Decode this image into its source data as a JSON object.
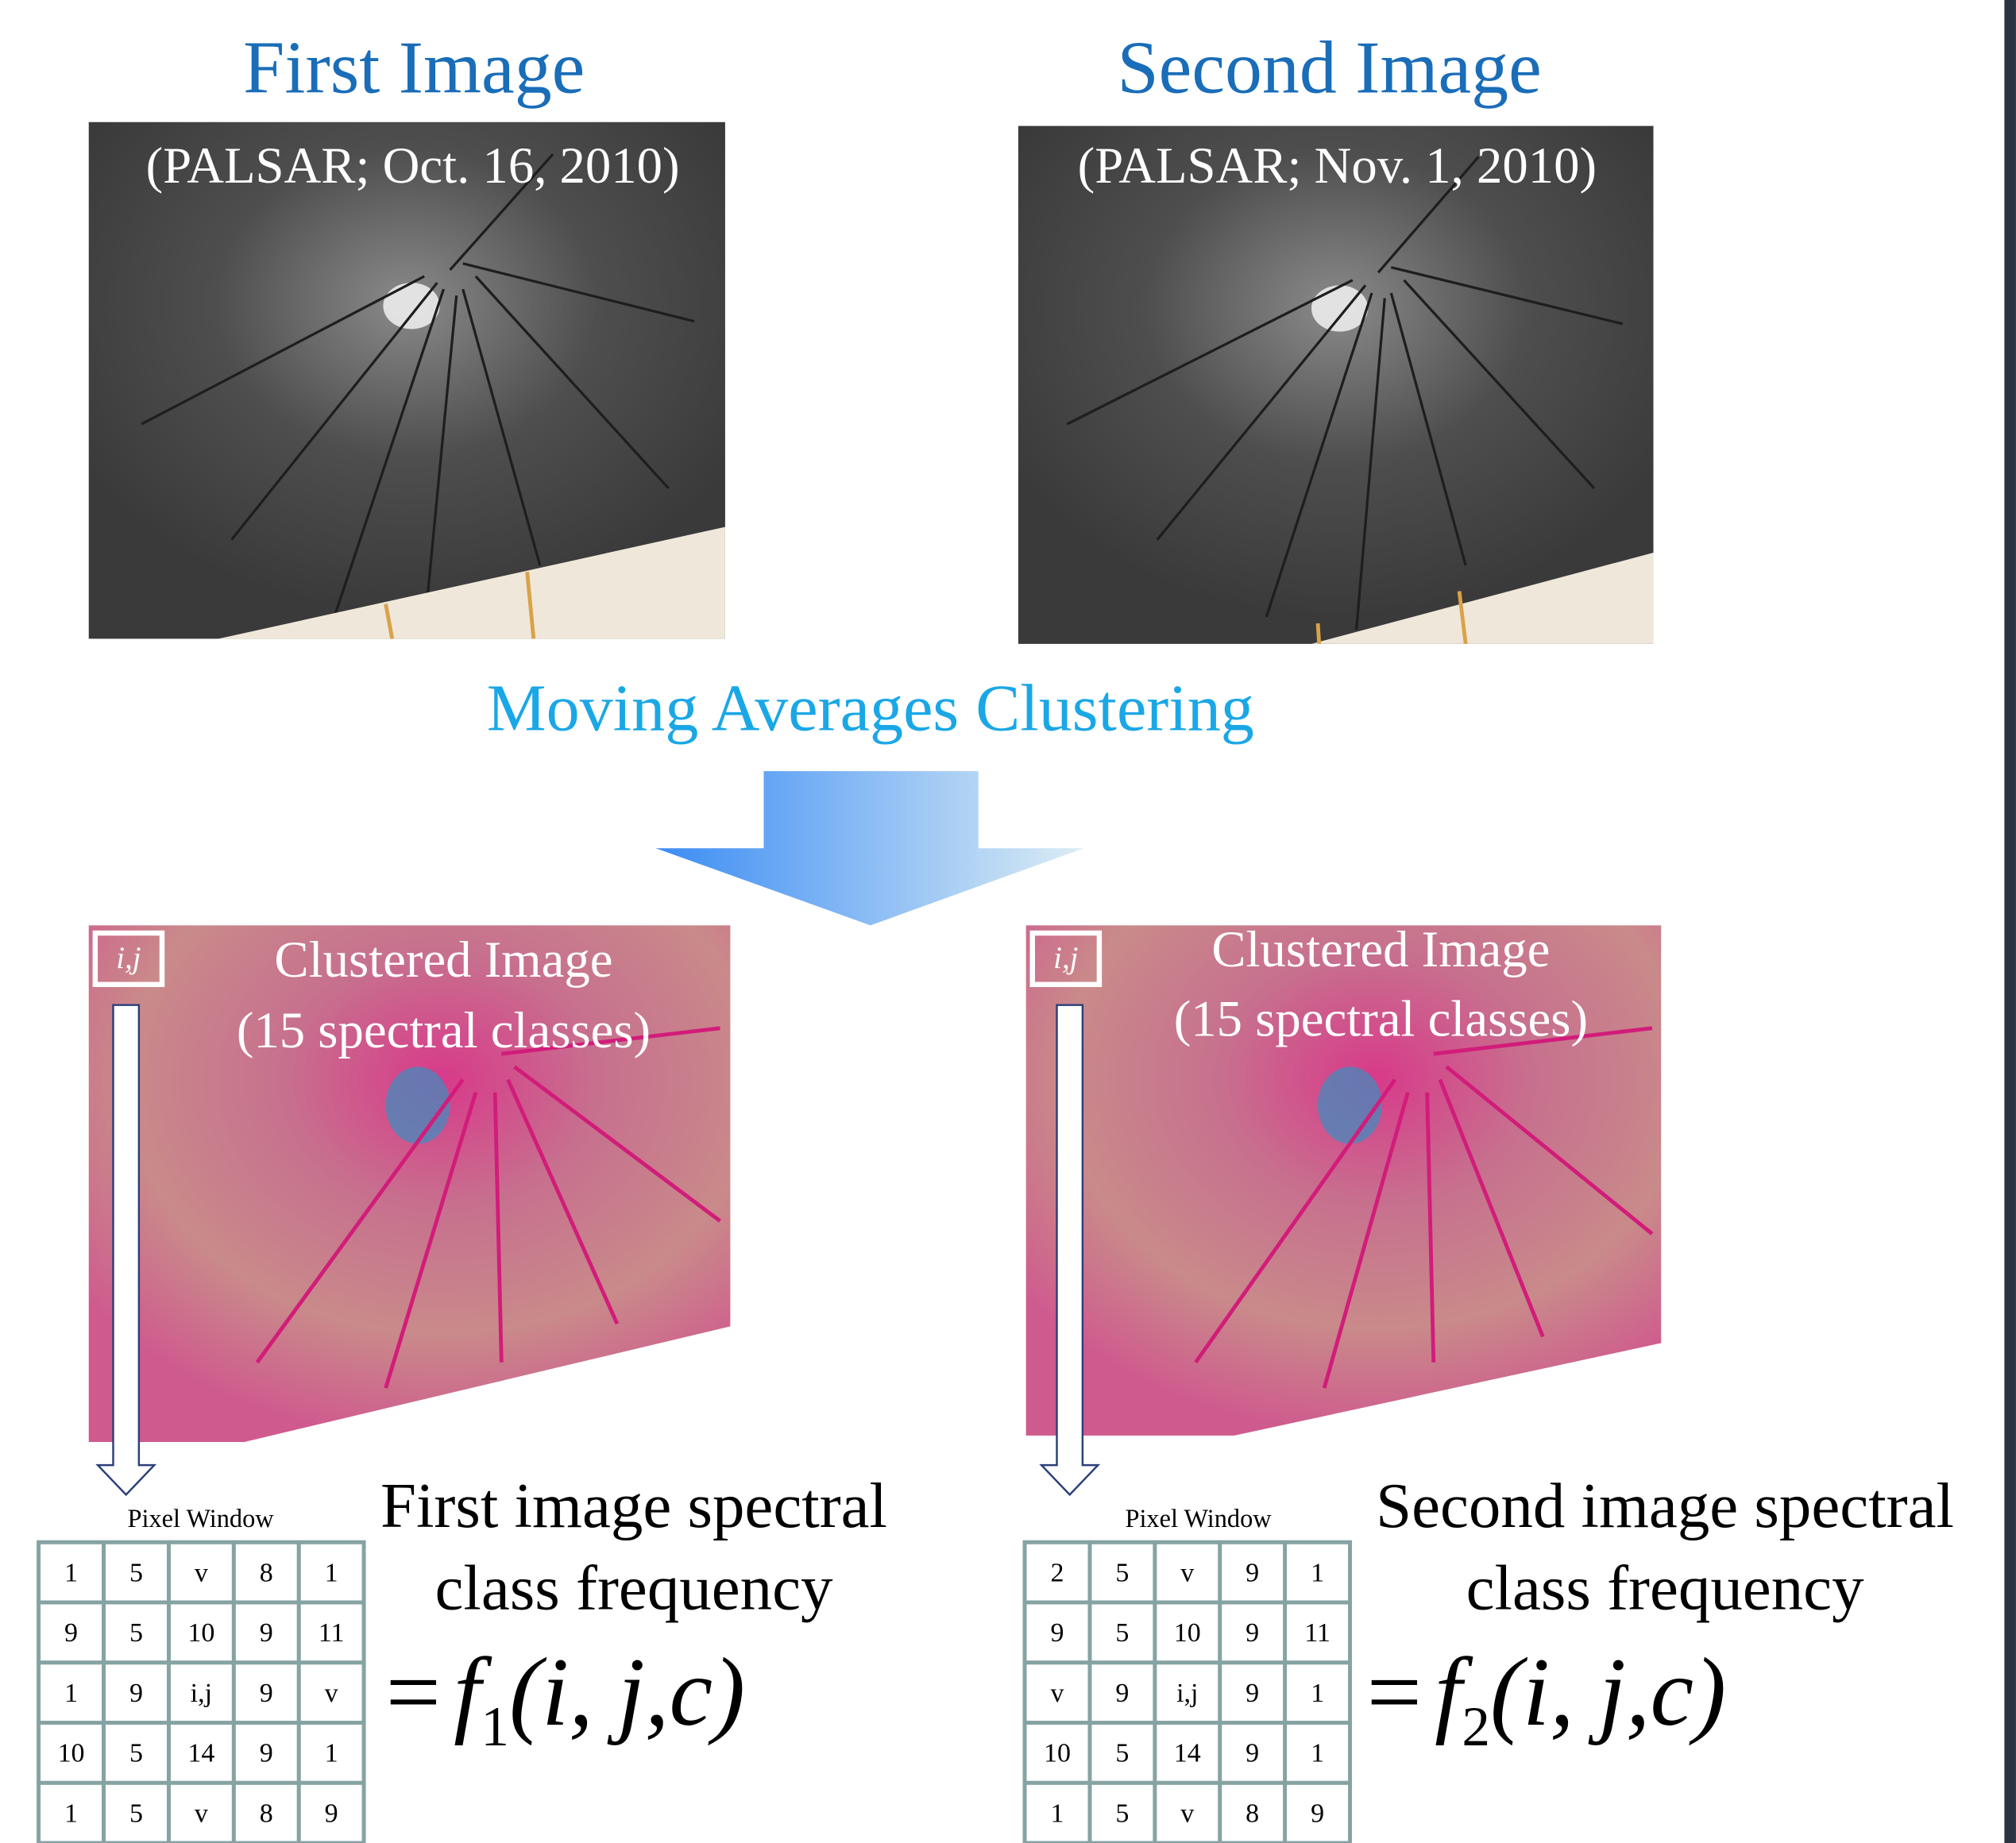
{
  "first_image": {
    "title": "First Image",
    "caption": "(PALSAR; Oct. 16, 2010)"
  },
  "second_image": {
    "title": "Second Image",
    "caption": "(PALSAR; Nov. 1, 2010)"
  },
  "process": "Moving Averages Clustering",
  "clustered": [
    {
      "window_label": "i,j",
      "title": "Clustered Image",
      "subtitle": "(15 spectral classes)"
    },
    {
      "window_label": "i,j",
      "title": "Clustered Image",
      "subtitle": "(15 spectral classes)"
    }
  ],
  "windows": [
    {
      "title": "Pixel Window",
      "rows": [
        [
          "1",
          "5",
          "v",
          "8",
          "1"
        ],
        [
          "9",
          "5",
          "10",
          "9",
          "11"
        ],
        [
          "1",
          "9",
          "i,j",
          "9",
          "v"
        ],
        [
          "10",
          "5",
          "14",
          "9",
          "1"
        ],
        [
          "1",
          "5",
          "v",
          "8",
          "9"
        ]
      ],
      "description": [
        "First image spectral",
        "class frequency"
      ],
      "formula": {
        "equals": "=",
        "function": "f",
        "subscript": "1",
        "args": "(i, j,c)"
      }
    },
    {
      "title": "Pixel Window",
      "rows": [
        [
          "2",
          "5",
          "v",
          "9",
          "1"
        ],
        [
          "9",
          "5",
          "10",
          "9",
          "11"
        ],
        [
          "v",
          "9",
          "i,j",
          "9",
          "1"
        ],
        [
          "10",
          "5",
          "14",
          "9",
          "1"
        ],
        [
          "1",
          "5",
          "v",
          "8",
          "9"
        ]
      ],
      "description": [
        "Second image spectral",
        "class frequency"
      ],
      "formula": {
        "equals": "=",
        "function": "f",
        "subscript": "2",
        "args": "(i, j,c)"
      }
    }
  ]
}
